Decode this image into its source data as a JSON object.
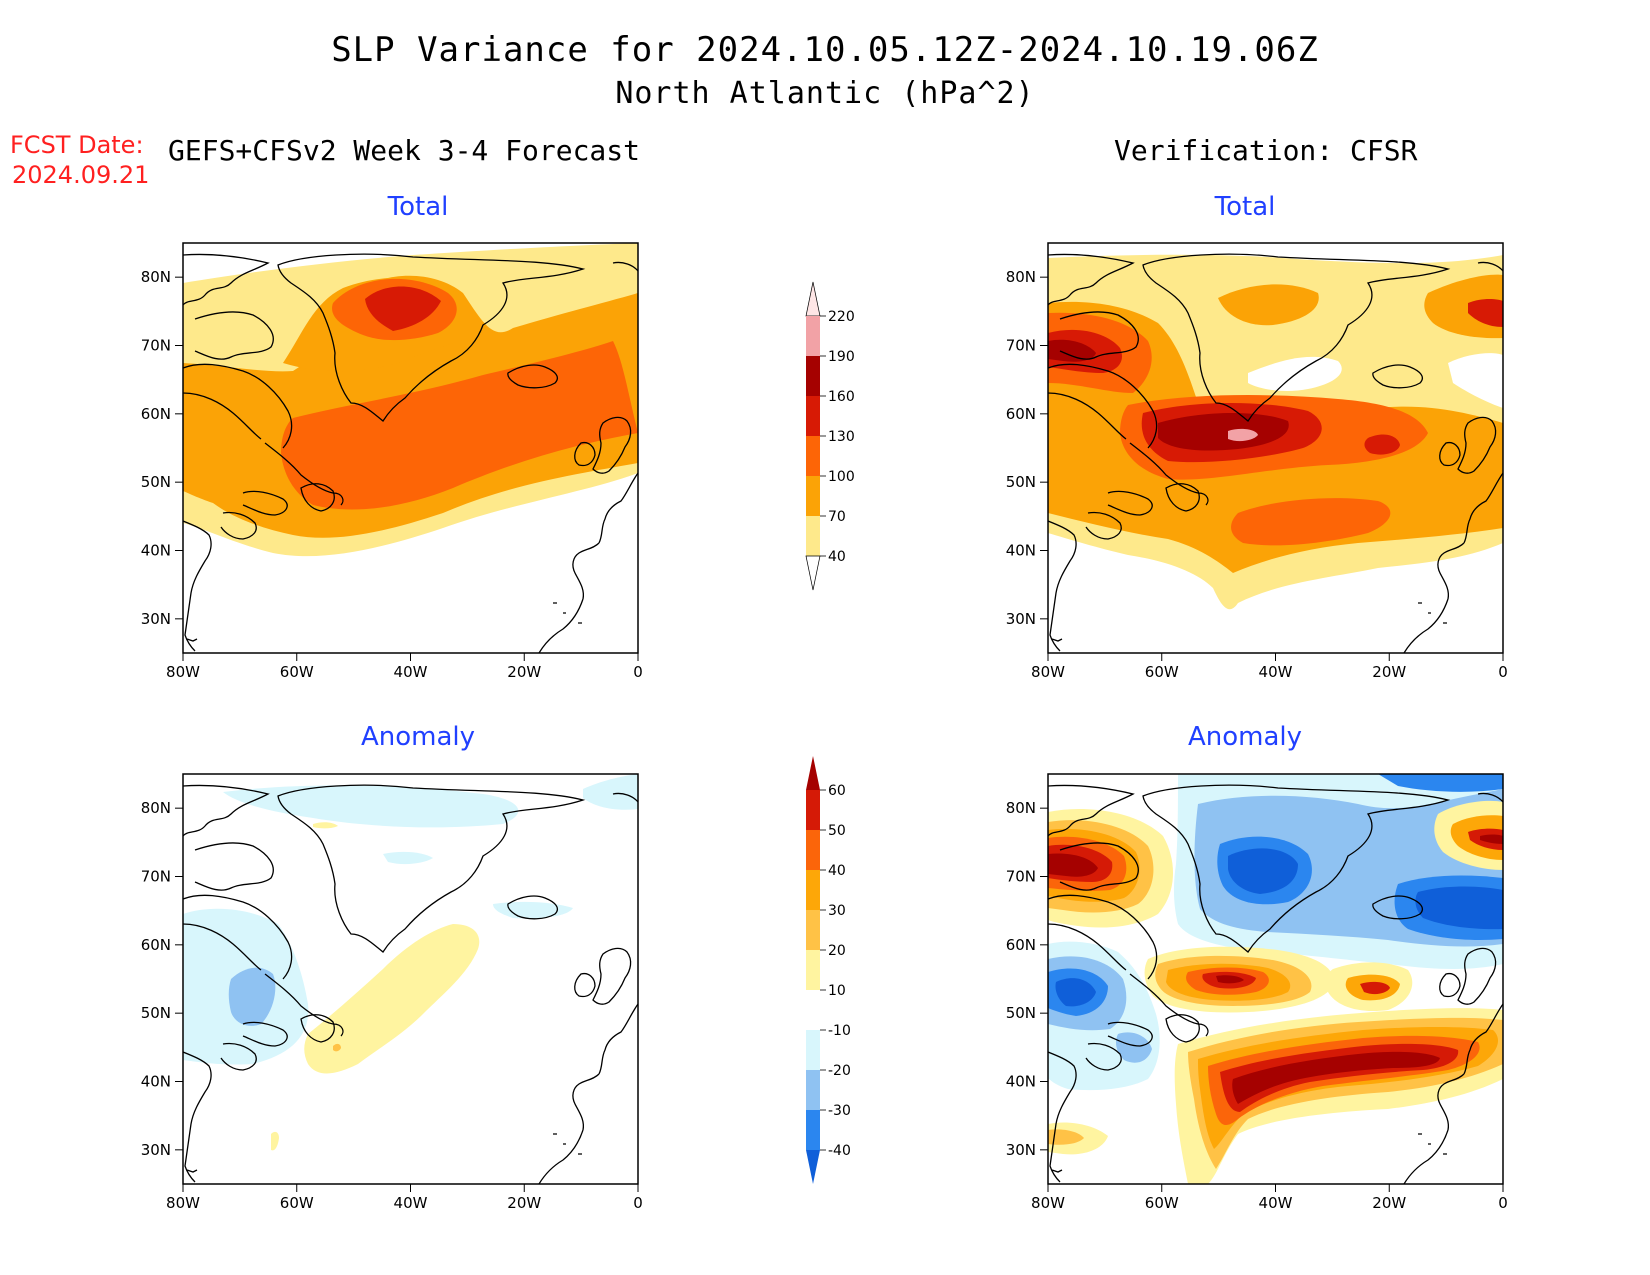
{
  "title": {
    "line1": "SLP Variance for 2024.10.05.12Z-2024.10.19.06Z",
    "line2": "North Atlantic (hPa^2)"
  },
  "fcst_date": {
    "label": "FCST Date:",
    "value": "2024.09.21"
  },
  "columns": {
    "left": "GEFS+CFSv2 Week 3-4 Forecast",
    "right": "Verification: CFSR"
  },
  "panel_titles": {
    "total": "Total",
    "anomaly": "Anomaly"
  },
  "axes": {
    "lat_labels": [
      "80N",
      "70N",
      "60N",
      "50N",
      "40N",
      "30N"
    ],
    "lon_labels": [
      "80W",
      "60W",
      "40W",
      "20W",
      "0"
    ]
  },
  "colorbars": {
    "total": {
      "levels": [
        "40",
        "70",
        "100",
        "130",
        "160",
        "190",
        "220"
      ],
      "colors": [
        "#ffffff",
        "#fee98b",
        "#fba306",
        "#fd6506",
        "#d71a05",
        "#a50100",
        "#f2a2a6",
        "#fee6e6"
      ]
    },
    "anomaly": {
      "levels": [
        "-40",
        "-30",
        "-20",
        "-10",
        "10",
        "20",
        "30",
        "40",
        "50",
        "60"
      ],
      "colors": [
        "#0f5fd9",
        "#2b86ef",
        "#8fc2f2",
        "#d8f6fc",
        "#ffffff",
        "#fff4a0",
        "#ffc246",
        "#fda708",
        "#fb650a",
        "#d51a06",
        "#a50100"
      ]
    }
  },
  "chart_data": [
    {
      "type": "heatmap",
      "panel": "GEFS+CFSv2 Week 3-4 Forecast — Total",
      "units": "hPa^2",
      "xlim": [
        -80,
        0
      ],
      "ylim": [
        25,
        85
      ],
      "features": [
        {
          "region": "North Atlantic band 35N-70N, 80W-0",
          "value_range": [
            40,
            100
          ]
        },
        {
          "region": "south of Greenland / Newfoundland to 20W, ~45N-60N",
          "value_range": [
            100,
            130
          ]
        },
        {
          "region": "central Greenland ~73N, 40W",
          "value_range": [
            130,
            160
          ]
        }
      ]
    },
    {
      "type": "heatmap",
      "panel": "Verification: CFSR — Total",
      "units": "hPa^2",
      "xlim": [
        -80,
        0
      ],
      "ylim": [
        25,
        85
      ],
      "features": [
        {
          "region": "Labrador Sea / Newfoundland to 35W, ~50N-57N",
          "value_range": [
            130,
            190
          ]
        },
        {
          "region": "peak near 53N, 45W",
          "value_range": [
            190,
            220
          ]
        },
        {
          "region": "Baffin Bay ~68N, 75W",
          "value_range": [
            130,
            160
          ]
        },
        {
          "region": "off Norway ~75N, 0",
          "value_range": [
            130,
            160
          ]
        }
      ]
    },
    {
      "type": "heatmap",
      "panel": "GEFS+CFSv2 Week 3-4 Forecast — Anomaly",
      "units": "hPa^2",
      "xlim": [
        -80,
        0
      ],
      "ylim": [
        25,
        85
      ],
      "features": [
        {
          "region": "mostly near zero",
          "value_range": [
            -10,
            10
          ]
        },
        {
          "region": "Labrador / eastern Canada ~52N, 65W",
          "value_range": [
            -30,
            -20
          ]
        },
        {
          "region": "band 40N-60N, 55W-30W",
          "value_range": [
            10,
            20
          ]
        }
      ]
    },
    {
      "type": "heatmap",
      "panel": "Verification: CFSR — Anomaly",
      "units": "hPa^2",
      "xlim": [
        -80,
        0
      ],
      "ylim": [
        25,
        85
      ],
      "features": [
        {
          "region": "Baffin Bay ~68N, 75W",
          "value_range": [
            50,
            60
          ]
        },
        {
          "region": "Greenland / Iceland ~60N-70N, 45W-0",
          "value_range": [
            -40,
            -30
          ]
        },
        {
          "region": "Labrador ~52N, 75W",
          "value_range": [
            -40,
            -30
          ]
        },
        {
          "region": "band ~40N-45N, 50W-10W",
          "value_range": [
            50,
            60
          ]
        },
        {
          "region": "~55N, 45W",
          "value_range": [
            50,
            60
          ]
        }
      ]
    }
  ]
}
